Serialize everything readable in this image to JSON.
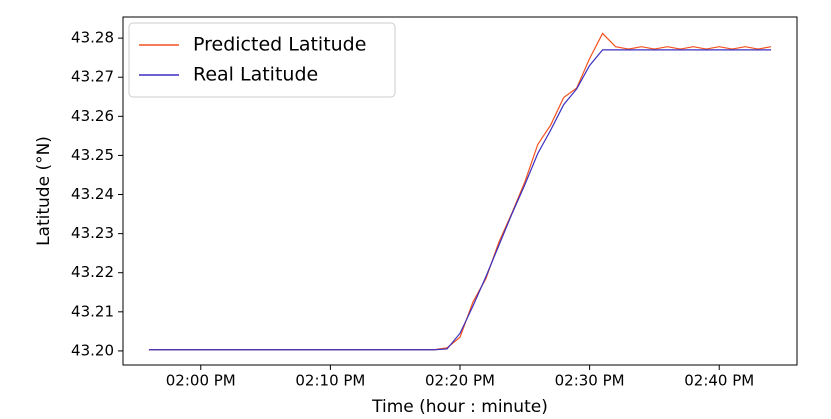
{
  "chart_data": {
    "type": "line",
    "x_label": "Time (hour : minute)",
    "y_label": "Latitude (°N)",
    "x": [
      "01:56 PM",
      "01:57 PM",
      "01:58 PM",
      "01:59 PM",
      "02:00 PM",
      "02:01 PM",
      "02:02 PM",
      "02:03 PM",
      "02:04 PM",
      "02:05 PM",
      "02:06 PM",
      "02:07 PM",
      "02:08 PM",
      "02:09 PM",
      "02:10 PM",
      "02:11 PM",
      "02:12 PM",
      "02:13 PM",
      "02:14 PM",
      "02:15 PM",
      "02:16 PM",
      "02:17 PM",
      "02:18 PM",
      "02:19 PM",
      "02:20 PM",
      "02:21 PM",
      "02:22 PM",
      "02:23 PM",
      "02:24 PM",
      "02:25 PM",
      "02:26 PM",
      "02:27 PM",
      "02:28 PM",
      "02:29 PM",
      "02:30 PM",
      "02:31 PM",
      "02:32 PM",
      "02:33 PM",
      "02:34 PM",
      "02:35 PM",
      "02:36 PM",
      "02:37 PM",
      "02:38 PM",
      "02:39 PM",
      "02:40 PM",
      "02:41 PM",
      "02:42 PM",
      "02:43 PM",
      "02:44 PM"
    ],
    "series": [
      {
        "name": "Predicted Latitude",
        "color": "#f4511e",
        "values": [
          43.2003,
          43.2003,
          43.2003,
          43.2003,
          43.2003,
          43.2003,
          43.2003,
          43.2003,
          43.2003,
          43.2003,
          43.2003,
          43.2003,
          43.2003,
          43.2003,
          43.2003,
          43.2003,
          43.2003,
          43.2003,
          43.2003,
          43.2003,
          43.2003,
          43.2003,
          43.2003,
          43.2008,
          43.2035,
          43.2125,
          43.2185,
          43.2278,
          43.2352,
          43.2432,
          43.2528,
          43.2578,
          43.2648,
          43.2672,
          43.2748,
          43.2812,
          43.2778,
          43.2772,
          43.2778,
          43.2772,
          43.2778,
          43.2772,
          43.2778,
          43.2772,
          43.2778,
          43.2772,
          43.2778,
          43.2772,
          43.2778
        ]
      },
      {
        "name": "Real Latitude",
        "color": "#3a2fbf",
        "values": [
          43.2003,
          43.2003,
          43.2003,
          43.2003,
          43.2003,
          43.2003,
          43.2003,
          43.2003,
          43.2003,
          43.2003,
          43.2003,
          43.2003,
          43.2003,
          43.2003,
          43.2003,
          43.2003,
          43.2003,
          43.2003,
          43.2003,
          43.2003,
          43.2003,
          43.2003,
          43.2003,
          43.2005,
          43.2045,
          43.2115,
          43.219,
          43.227,
          43.235,
          43.2425,
          43.2505,
          43.2565,
          43.263,
          43.267,
          43.273,
          43.277,
          43.277,
          43.277,
          43.277,
          43.277,
          43.277,
          43.277,
          43.277,
          43.277,
          43.277,
          43.277,
          43.277,
          43.277,
          43.277
        ]
      }
    ],
    "xlim": [
      "01:54 PM",
      "02:46 PM"
    ],
    "xticks": [
      "02:00 PM",
      "02:10 PM",
      "02:20 PM",
      "02:30 PM",
      "02:40 PM"
    ],
    "ylim": [
      43.1964,
      43.2854
    ],
    "yticks": [
      {
        "value": 43.2,
        "label": "43.20"
      },
      43.21,
      43.22,
      43.23,
      43.24,
      43.25,
      43.26,
      43.27,
      43.28
    ],
    "legend": "upper left"
  }
}
